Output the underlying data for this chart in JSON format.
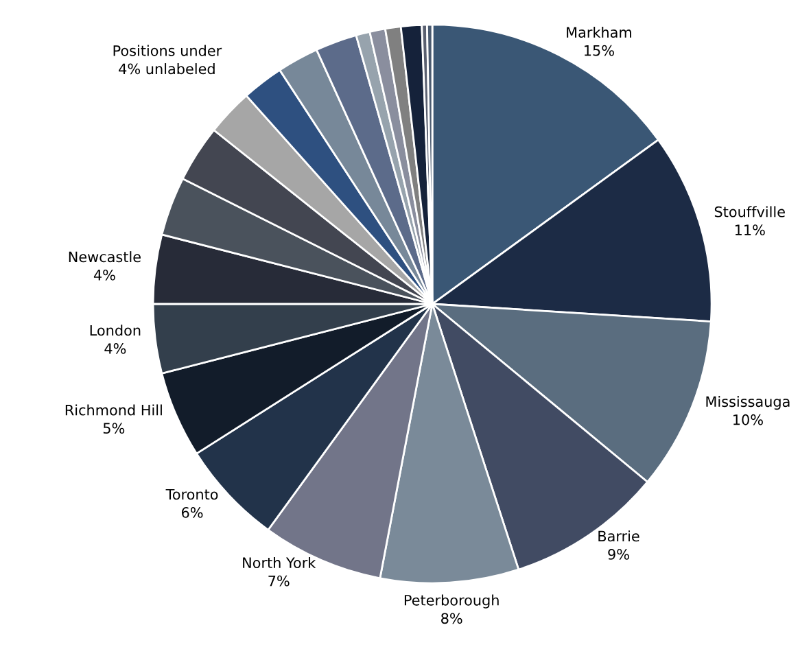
{
  "chart_data": {
    "type": "pie",
    "categories": [
      "Markham",
      "Stouffville",
      "Mississauga",
      "Barrie",
      "Peterborough",
      "North York",
      "Toronto",
      "Richmond Hill",
      "London",
      "Newcastle",
      null,
      null,
      null,
      null,
      null,
      null,
      null,
      null,
      null,
      null,
      null,
      null
    ],
    "values": [
      15,
      11,
      10,
      9,
      8,
      7,
      6,
      5,
      4,
      4,
      3.4,
      3.3,
      2.7,
      2.4,
      2.4,
      2.4,
      0.8,
      0.9,
      0.9,
      1.2,
      0.3,
      0.3
    ],
    "value_labels": [
      "15%",
      "11%",
      "10%",
      "9%",
      "8%",
      "7%",
      "6%",
      "5%",
      "4%",
      "4%",
      null,
      null,
      null,
      null,
      null,
      null,
      null,
      null,
      null,
      null,
      null,
      null
    ],
    "colors": [
      "#3a5775",
      "#1c2b45",
      "#5a6d7f",
      "#414b63",
      "#7a8a99",
      "#727589",
      "#22334a",
      "#121c2a",
      "#333f4c",
      "#272b38",
      "#4a525c",
      "#434651",
      "#a6a6a6",
      "#2e5080",
      "#778899",
      "#5c6b8a",
      "#97a3ad",
      "#8a8e9e",
      "#808080",
      "#15223a",
      "#5a6070",
      "#4a5a70"
    ],
    "annotations": [
      "Positions under\n4% unlabeled"
    ],
    "legend": false
  }
}
